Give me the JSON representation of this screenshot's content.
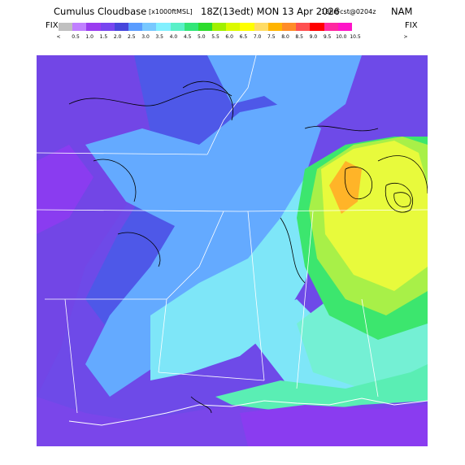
{
  "title": {
    "product": "Cumulus Cloudbase",
    "units": "[x1000ftMSL]",
    "valid": "18Z(13edt) MON 13 Apr 2026",
    "forecast": "18hrFcst@0204z",
    "model": "NAM"
  },
  "legend": {
    "left_label": "FIX",
    "right_label": "FIX",
    "less_than": "<",
    "greater_than": ">",
    "ticks": [
      "0.5",
      "1.0",
      "1.5",
      "2.0",
      "2.5",
      "3.0",
      "3.5",
      "4.0",
      "4.5",
      "5.0",
      "5.5",
      "6.0",
      "6.5",
      "7.0",
      "7.5",
      "8.0",
      "8.5",
      "9.0",
      "9.5",
      "10.0",
      "10.5"
    ],
    "colors": [
      "#c0c0c0",
      "#c080ff",
      "#9a3cf0",
      "#7846f0",
      "#4646dc",
      "#5a9cff",
      "#78c8ff",
      "#82f0ff",
      "#5af0c8",
      "#32e678",
      "#2cdc2c",
      "#a0f000",
      "#dcfa00",
      "#ffff00",
      "#ffdc64",
      "#ffb400",
      "#ff8c28",
      "#ff5050",
      "#ff0000",
      "#ff28a0",
      "#ff14c8"
    ]
  },
  "map": {
    "colors": {
      "deep_purple": "#8a3cf0",
      "purple": "#7246e6",
      "blue": "#4e58e8",
      "light_blue": "#64aaff",
      "cyan": "#7ee6f8",
      "aqua": "#74f0d4",
      "green": "#3ce66e",
      "lime": "#a8f048",
      "yellow": "#e8fa3c",
      "orange": "#ffb428"
    }
  }
}
